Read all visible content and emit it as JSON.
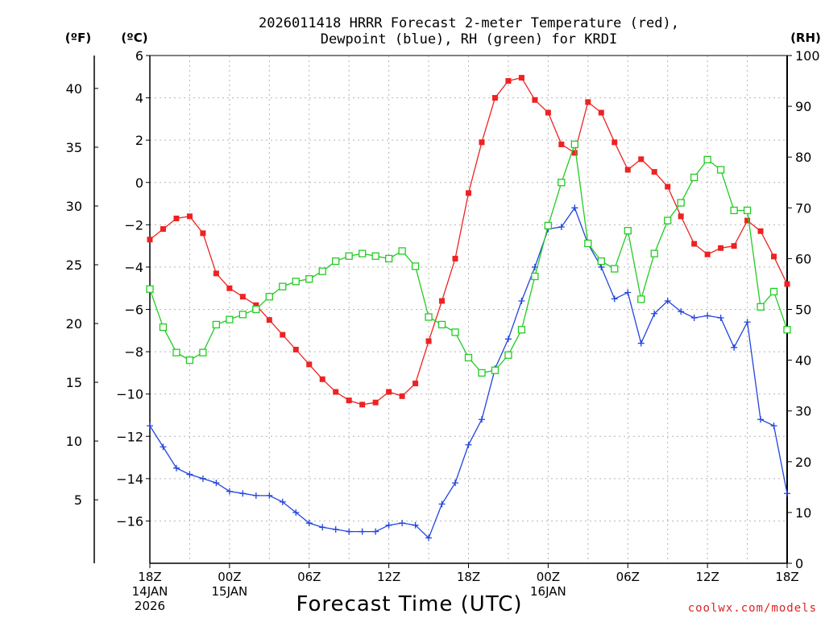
{
  "chart_data": {
    "type": "line",
    "title_line1": "2026011418 HRRR Forecast 2-meter Temperature (red),",
    "title_line2": "Dewpoint (blue), RH (green) for KRDI",
    "xlabel": "Forecast Time (UTC)",
    "watermark": "coolwx.com/models",
    "unit_f": "(ºF)",
    "unit_c": "(ºC)",
    "unit_rh": "(RH)",
    "x_range": [
      0,
      48
    ],
    "celsius_range": [
      -18,
      6
    ],
    "rh_range": [
      0,
      100
    ],
    "celsius_ticks": [
      "6",
      "4",
      "2",
      "0",
      "−2",
      "−4",
      "−6",
      "−8",
      "−10",
      "−12",
      "−14",
      "−16"
    ],
    "fahrenheit_ticks": [
      "40",
      "35",
      "30",
      "25",
      "20",
      "15",
      "10",
      "5"
    ],
    "rh_ticks": [
      "100",
      "90",
      "80",
      "70",
      "60",
      "50",
      "40",
      "30",
      "20",
      "10",
      "0"
    ],
    "x_ticks": [
      {
        "lines": [
          "18Z",
          "14JAN",
          "2026"
        ]
      },
      {
        "lines": [
          "00Z",
          "15JAN"
        ]
      },
      {
        "lines": [
          "06Z"
        ]
      },
      {
        "lines": [
          "12Z"
        ]
      },
      {
        "lines": [
          "18Z"
        ]
      },
      {
        "lines": [
          "00Z",
          "16JAN"
        ]
      },
      {
        "lines": [
          "06Z"
        ]
      },
      {
        "lines": [
          "12Z"
        ]
      },
      {
        "lines": [
          "18Z"
        ]
      }
    ],
    "series": [
      {
        "axis": "celsius",
        "color": "#ee2222",
        "marker": "filled-square",
        "values": [
          -2.7,
          -2.2,
          -1.7,
          -1.6,
          -2.4,
          -4.3,
          -5.0,
          -5.4,
          -5.8,
          -6.5,
          -7.2,
          -7.9,
          -8.6,
          -9.3,
          -9.9,
          -10.3,
          -10.5,
          -10.4,
          -9.9,
          -10.1,
          -9.5,
          -7.5,
          -5.6,
          -3.6,
          -0.5,
          1.9,
          4.0,
          4.8,
          4.95,
          3.9,
          3.3,
          1.8,
          1.4,
          3.8,
          3.3,
          1.9,
          0.6,
          1.1,
          0.5,
          -0.2,
          -1.6,
          -2.9,
          -3.4,
          -3.1,
          -3.0,
          -1.8,
          -2.3,
          -3.5,
          -4.8
        ]
      },
      {
        "axis": "celsius",
        "color": "#2244dd",
        "marker": "plus",
        "values": [
          -11.5,
          -12.5,
          -13.5,
          -13.8,
          -14.0,
          -14.2,
          -14.6,
          -14.7,
          -14.8,
          -14.8,
          -15.1,
          -15.6,
          -16.1,
          -16.3,
          -16.4,
          -16.5,
          -16.5,
          -16.5,
          -16.2,
          -16.1,
          -16.2,
          -16.8,
          -15.2,
          -14.2,
          -12.4,
          -11.2,
          -8.8,
          -7.4,
          -5.6,
          -4.0,
          -2.2,
          -2.1,
          -1.2,
          -2.9,
          -4.0,
          -5.5,
          -5.2,
          -7.6,
          -6.2,
          -5.6,
          -6.1,
          -6.4,
          -6.3,
          -6.4,
          -7.8,
          -6.6,
          -11.2,
          -11.5,
          -14.7
        ]
      },
      {
        "axis": "rh",
        "color": "#22cc22",
        "marker": "open-square",
        "values": [
          54,
          46.5,
          41.5,
          40,
          41.5,
          47,
          48,
          49,
          50,
          52.5,
          54.5,
          55.5,
          56,
          57.5,
          59.5,
          60.5,
          61,
          60.5,
          60,
          61.5,
          58.5,
          48.5,
          47,
          45.5,
          40.5,
          37.5,
          38,
          41,
          46,
          56.5,
          66.5,
          75,
          82.5,
          63,
          59.5,
          58,
          65.5,
          52,
          61,
          67.5,
          71,
          76,
          79.5,
          77.5,
          69.5,
          69.5,
          50.5,
          53.5,
          46
        ]
      }
    ]
  }
}
